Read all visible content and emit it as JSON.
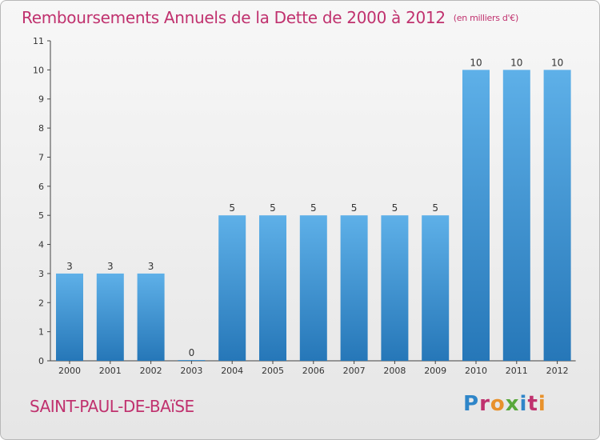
{
  "chart_data": {
    "type": "bar",
    "title": "Remboursements Annuels de la Dette de 2000 à 2012",
    "subtitle": "(en milliers d'€)",
    "categories": [
      "2000",
      "2001",
      "2002",
      "2003",
      "2004",
      "2005",
      "2006",
      "2007",
      "2008",
      "2009",
      "2010",
      "2011",
      "2012"
    ],
    "values": [
      3,
      3,
      3,
      0,
      5,
      5,
      5,
      5,
      5,
      5,
      10,
      10,
      10
    ],
    "yticks": [
      "0",
      "1",
      "2",
      "3",
      "4",
      "5",
      "6",
      "7",
      "8",
      "9",
      "10",
      "11"
    ],
    "ylim": [
      0,
      11
    ],
    "grid": false,
    "colors": {
      "bar_top": "#5eb0e8",
      "bar_bottom": "#2677b8",
      "axis": "#444444",
      "title": "#c0316e"
    }
  },
  "footer": {
    "commune": "SAINT-PAUL-DE-BAïSE",
    "logo_text": "Proxiti"
  }
}
